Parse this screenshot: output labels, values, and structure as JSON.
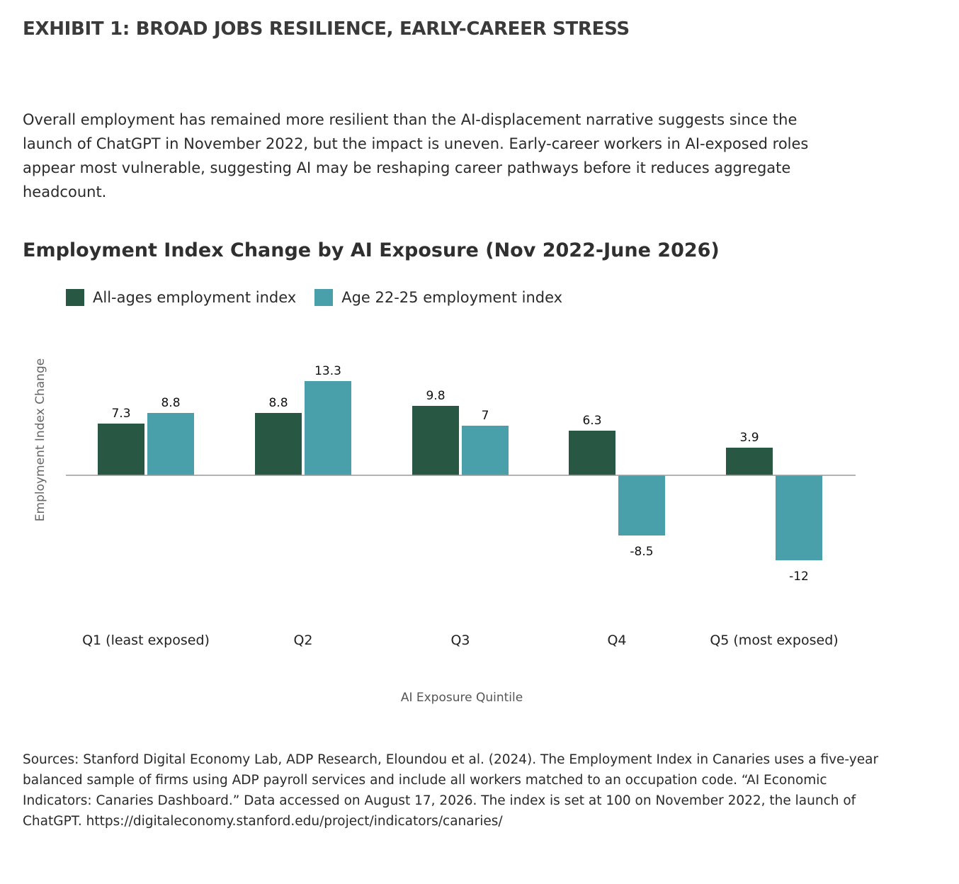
{
  "exhibit_title": "EXHIBIT 1: BROAD JOBS RESILIENCE, EARLY-CAREER STRESS",
  "intro_text": "Overall employment has remained more resilient than the AI-displacement narrative suggests since the launch of ChatGPT in November 2022, but the impact is uneven. Early-career workers in AI-exposed roles appear most vulnerable, suggesting AI may be reshaping career pathways before it reduces aggregate headcount.",
  "sources_text": "Sources: Stanford Digital Economy Lab, ADP Research, Eloundou et al. (2024). The Employment Index in Canaries uses a five-year balanced sample of firms using ADP payroll services and include all workers matched to an occupation code. “AI Economic Indicators: Canaries Dashboard.” Data accessed on August 17, 2026. The index is set at 100 on November 2022, the launch of ChatGPT. https://digitaleconomy.stanford.edu/project/indicators/canaries/",
  "chart_data": {
    "type": "bar",
    "title": "Employment Index Change by AI Exposure (Nov 2022-June 2026)",
    "xlabel": "AI Exposure Quintile",
    "ylabel": "Employment Index Change",
    "categories": [
      "Q1 (least exposed)",
      "Q2",
      "Q3",
      "Q4",
      "Q5 (most exposed)"
    ],
    "series": [
      {
        "name": "All-ages employment index",
        "color": "#285843",
        "values": [
          7.3,
          8.8,
          9.8,
          6.3,
          3.9
        ],
        "labels": [
          "7.3",
          "8.8",
          "9.8",
          "6.3",
          "3.9"
        ]
      },
      {
        "name": "Age 22-25 employment index",
        "color": "#49a0ab",
        "values": [
          8.8,
          13.3,
          7,
          -8.5,
          -12
        ],
        "labels": [
          "8.8",
          "13.3",
          "7",
          "-8.5",
          "-12"
        ]
      }
    ],
    "ylim": [
      -20,
      20
    ],
    "grid": false,
    "legend_position": "top-left",
    "baseline_color": "#9a9a9a"
  }
}
